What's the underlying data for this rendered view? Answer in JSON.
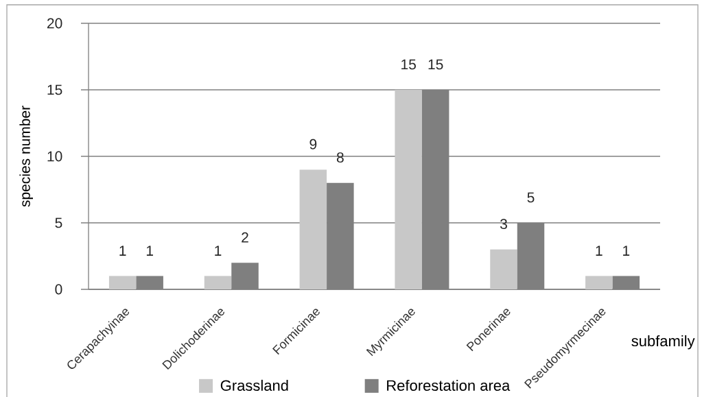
{
  "chart_data": {
    "type": "bar",
    "xlabel": "subfamily",
    "ylabel": "species number",
    "categories": [
      "Cerapachyinae",
      "Dolichoderinae",
      "Formicinae",
      "Myrmicinae",
      "Ponerinae",
      "Pseudomyrmecinae"
    ],
    "series": [
      {
        "name": "Grassland",
        "color": "#c8c8c8",
        "values": [
          1,
          1,
          9,
          15,
          3,
          1
        ]
      },
      {
        "name": "Reforestation area",
        "color": "#7f7f7f",
        "values": [
          1,
          2,
          8,
          15,
          5,
          1
        ]
      }
    ],
    "ylim": [
      0,
      20
    ],
    "yticks": [
      0,
      5,
      10,
      15,
      20
    ],
    "grid": "y",
    "legend": "bottom",
    "data_labels": true
  }
}
